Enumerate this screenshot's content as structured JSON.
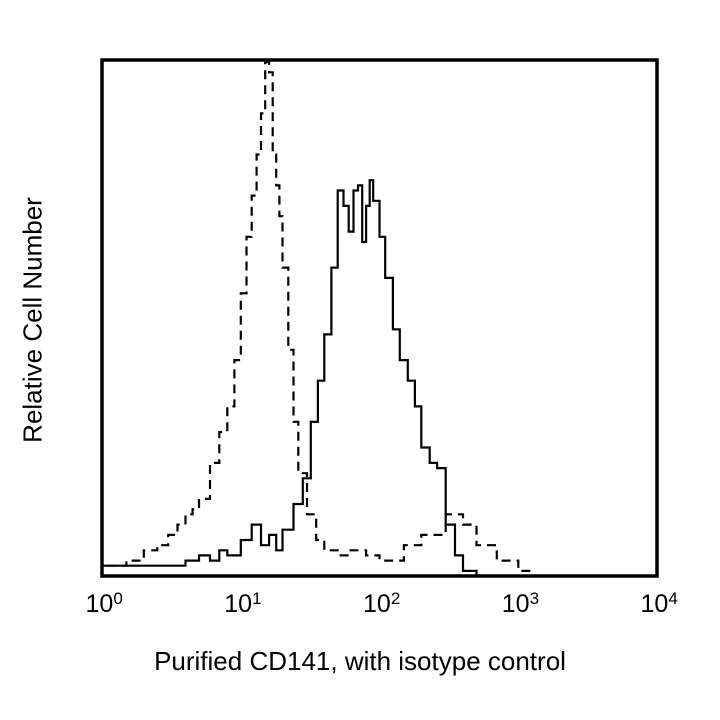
{
  "chart_data": {
    "type": "line",
    "subtype": "flow-cytometry histogram",
    "title": "",
    "xlabel": "Purified CD141, with isotype control",
    "ylabel": "Relative Cell Number",
    "xscale": "log",
    "xlim": [
      1,
      10000
    ],
    "ylim": [
      0,
      100
    ],
    "grid": false,
    "legend": null,
    "x_ticks": [
      {
        "base": "10",
        "exp": "0"
      },
      {
        "base": "10",
        "exp": "1"
      },
      {
        "base": "10",
        "exp": "2"
      },
      {
        "base": "10",
        "exp": "3"
      },
      {
        "base": "10",
        "exp": "4"
      }
    ],
    "series": [
      {
        "name": "Isotype control",
        "style": "dashed",
        "color": "#000000",
        "x": [
          1.0,
          1.5,
          2.0,
          2.5,
          3.0,
          3.5,
          4.0,
          4.5,
          5.0,
          6.0,
          7.0,
          8.0,
          9.0,
          10.0,
          11.0,
          12.0,
          13.0,
          14.0,
          15.0,
          16.0,
          17.0,
          18.0,
          19.0,
          20.0,
          22.0,
          24.0,
          26.0,
          30.0,
          35.0,
          40.0,
          50.0,
          60.0,
          80.0,
          100.0,
          150.0,
          200.0,
          300.0,
          400.0,
          500.0,
          700.0,
          1000.0,
          1200.0
        ],
        "values": [
          2,
          3,
          5,
          6,
          8,
          10,
          12,
          13,
          15,
          22,
          28,
          33,
          42,
          55,
          66,
          74,
          82,
          90,
          100,
          98,
          82,
          76,
          70,
          60,
          44,
          30,
          20,
          12,
          7,
          5,
          4,
          5,
          4,
          3,
          6,
          8,
          12,
          10,
          6,
          3,
          1,
          0
        ]
      },
      {
        "name": "Purified CD141",
        "style": "solid",
        "color": "#000000",
        "x": [
          1.0,
          1.5,
          2.0,
          3.0,
          4.0,
          5.0,
          6.0,
          7.0,
          8.0,
          10.0,
          12.0,
          14.0,
          16.0,
          18.0,
          20.0,
          24.0,
          28.0,
          32.0,
          36.0,
          40.0,
          45.0,
          50.0,
          55.0,
          60.0,
          65.0,
          70.0,
          75.0,
          80.0,
          85.0,
          90.0,
          100.0,
          110.0,
          125.0,
          140.0,
          160.0,
          180.0,
          200.0,
          230.0,
          260.0,
          300.0,
          350.0,
          400.0,
          500.0
        ],
        "values": [
          2,
          2,
          2,
          2,
          3,
          4,
          3,
          5,
          4,
          7,
          10,
          6,
          8,
          5,
          9,
          14,
          19,
          30,
          38,
          47,
          60,
          75,
          72,
          67,
          75,
          76,
          65,
          72,
          77,
          73,
          66,
          58,
          48,
          42,
          38,
          33,
          25,
          22,
          21,
          10,
          4,
          1,
          0
        ]
      }
    ]
  }
}
